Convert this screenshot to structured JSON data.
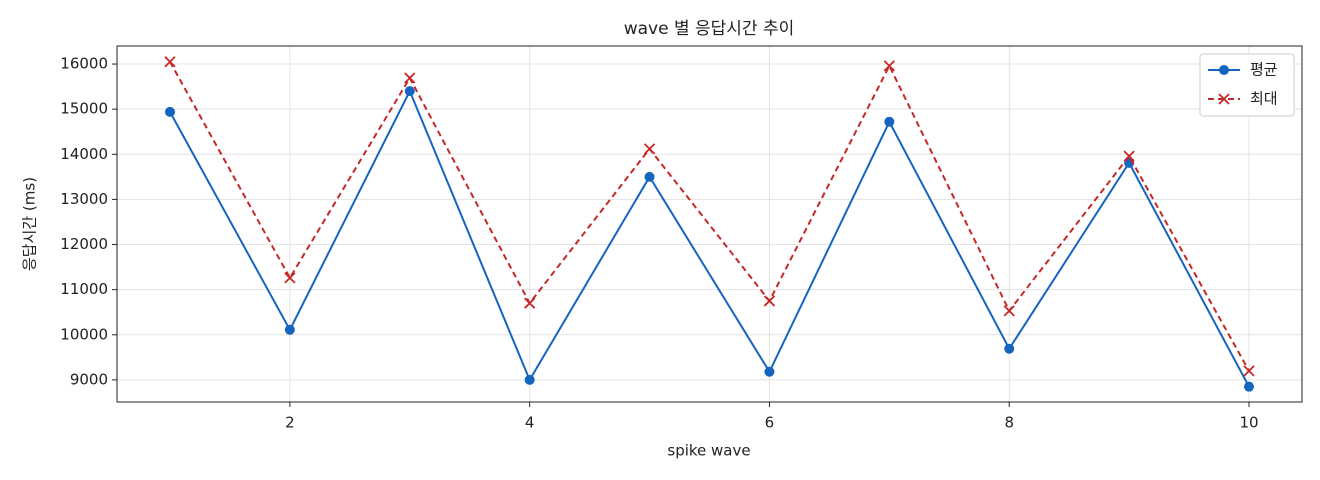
{
  "chart_data": {
    "type": "line",
    "title": "wave 별 응답시간 추이",
    "x_label": "spike wave",
    "y_label": "응답시간 (ms)",
    "x": [
      1,
      2,
      3,
      4,
      5,
      6,
      7,
      8,
      9,
      10
    ],
    "series": [
      {
        "name": "평균",
        "color": "#1565c0",
        "marker": "circle",
        "dash": "solid",
        "values": [
          14940,
          10110,
          15400,
          9000,
          13500,
          9180,
          14720,
          9690,
          13810,
          8850
        ]
      },
      {
        "name": "최대",
        "color": "#c62828",
        "marker": "x",
        "dash": "dashed",
        "values": [
          16050,
          11260,
          15690,
          10700,
          14120,
          10750,
          15960,
          10530,
          13960,
          9200
        ]
      }
    ],
    "xlim": [
      0.558,
      10.442
    ],
    "xticks": [
      2,
      4,
      6,
      8,
      10
    ],
    "ylim": [
      8510,
      16400
    ],
    "yticks": [
      9000,
      10000,
      11000,
      12000,
      13000,
      14000,
      15000,
      16000
    ],
    "grid": true,
    "legend": "upper right"
  }
}
